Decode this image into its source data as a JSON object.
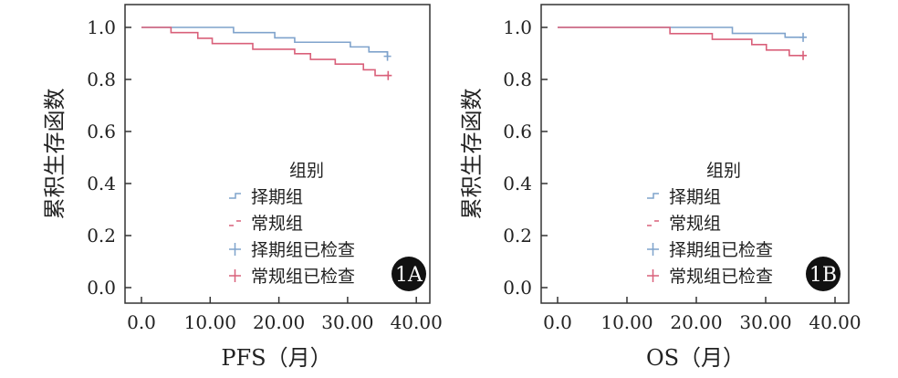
{
  "chart_data": [
    {
      "type": "line",
      "panel_label": "1A",
      "xlabel": "PFS（月）",
      "ylabel": "累积生存函数",
      "xlim": [
        0,
        40
      ],
      "ylim": [
        0,
        1.0
      ],
      "x_ticks": [
        "0.0",
        "10.00",
        "20.00",
        "30.00",
        "40.00"
      ],
      "y_ticks": [
        "0.0",
        "0.2",
        "0.4",
        "0.6",
        "0.8",
        "1.0"
      ],
      "legend": {
        "title": "组别",
        "placement": "bottom-center",
        "entries": [
          "择期组",
          "常规组",
          "择期组已检查",
          "常规组已检查"
        ]
      },
      "series": [
        {
          "name": "择期组",
          "color": "#7fa3cc",
          "steps": [
            [
              0,
              1.0
            ],
            [
              13.4,
              0.98
            ],
            [
              19.4,
              0.96
            ],
            [
              22.3,
              0.943
            ],
            [
              30.4,
              0.925
            ],
            [
              33.1,
              0.906
            ],
            [
              35.8,
              0.889
            ]
          ],
          "censored": [
            [
              35.8,
              0.889
            ]
          ]
        },
        {
          "name": "常规组",
          "color": "#d9607a",
          "steps": [
            [
              0,
              1.0
            ],
            [
              4.3,
              0.98
            ],
            [
              8.2,
              0.958
            ],
            [
              10.3,
              0.938
            ],
            [
              16.2,
              0.916
            ],
            [
              22.3,
              0.899
            ],
            [
              24.6,
              0.877
            ],
            [
              28.2,
              0.859
            ],
            [
              32.3,
              0.837
            ],
            [
              34.0,
              0.815
            ]
          ],
          "end": 35.9,
          "censored": [
            [
              35.9,
              0.815
            ]
          ]
        }
      ]
    },
    {
      "type": "line",
      "panel_label": "1B",
      "xlabel": "OS（月）",
      "ylabel": "累积生存函数",
      "xlim": [
        0,
        40
      ],
      "ylim": [
        0,
        1.0
      ],
      "x_ticks": [
        "0.0",
        "10.00",
        "20.00",
        "30.00",
        "40.00"
      ],
      "y_ticks": [
        "0.0",
        "0.2",
        "0.4",
        "0.6",
        "0.8",
        "1.0"
      ],
      "legend": {
        "title": "组别",
        "placement": "bottom-center",
        "entries": [
          "择期组",
          "常规组",
          "择期组已检查",
          "常规组已检查"
        ]
      },
      "series": [
        {
          "name": "择期组",
          "color": "#7fa3cc",
          "steps": [
            [
              0,
              1.0
            ],
            [
              25.2,
              0.977
            ],
            [
              32.8,
              0.962
            ]
          ],
          "end": 35.4,
          "censored": [
            [
              35.4,
              0.962
            ]
          ]
        },
        {
          "name": "常规组",
          "color": "#d9607a",
          "steps": [
            [
              0,
              1.0
            ],
            [
              16.2,
              0.976
            ],
            [
              22.3,
              0.954
            ],
            [
              28.0,
              0.934
            ],
            [
              30.1,
              0.913
            ],
            [
              33.4,
              0.892
            ]
          ],
          "end": 35.4,
          "censored": [
            [
              35.4,
              0.892
            ]
          ]
        }
      ]
    }
  ]
}
